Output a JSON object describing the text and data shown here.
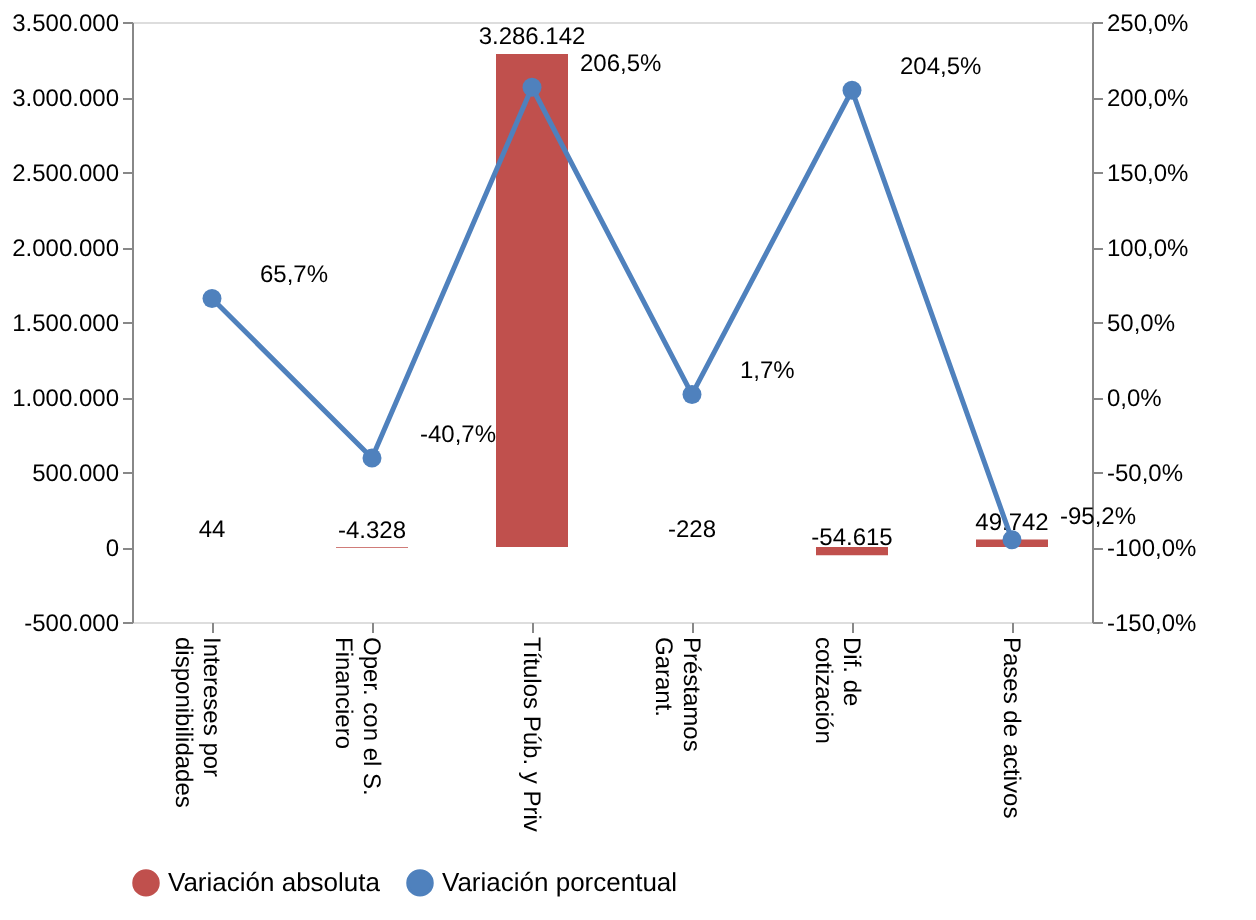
{
  "chart_data": {
    "type": "bar",
    "categories": [
      "Intereses por\ndisponibilidades",
      "Oper. con el S.\nFinanciero",
      "Títulos Púb. y Priv",
      "Préstamos\nGarant.",
      "Dif. de\ncotización",
      "Pases de activos"
    ],
    "series": [
      {
        "name": "Variación absoluta",
        "type": "bar",
        "color": "#c0504d",
        "values": [
          44,
          -4328,
          3286142,
          -228,
          -54615,
          49742
        ],
        "value_labels": [
          "44",
          "-4.328",
          "3.286.142",
          "-228",
          "-54.615",
          "49.742"
        ]
      },
      {
        "name": "Variación porcentual",
        "type": "line",
        "axis": "y2",
        "color": "#4f81bd",
        "values": [
          65.7,
          -40.7,
          206.5,
          1.7,
          204.5,
          -95.2
        ],
        "value_labels": [
          "65,7%",
          "-40,7%",
          "206,5%",
          "1,7%",
          "204,5%",
          "-95,2%"
        ]
      }
    ],
    "ylim": [
      -500000,
      3500000
    ],
    "yticks": [
      {
        "value": -500000,
        "label": "-500.000"
      },
      0,
      {
        "value": 500000,
        "label": "500.000"
      },
      {
        "value": 1000000,
        "label": "1.000.000"
      },
      {
        "value": 1500000,
        "label": "1.500.000"
      },
      {
        "value": 2000000,
        "label": "2.000.000"
      },
      {
        "value": 2500000,
        "label": "2.500.000"
      },
      {
        "value": 3000000,
        "label": "3.000.000"
      },
      {
        "value": 3500000,
        "label": "3.500.000"
      }
    ],
    "y2lim": [
      -150,
      250
    ],
    "y2ticks": [
      {
        "value": -150,
        "label": "-150,0%"
      },
      {
        "value": -100,
        "label": "-100,0%"
      },
      {
        "value": -50,
        "label": "-50,0%"
      },
      {
        "value": 0,
        "label": "0,0%"
      },
      {
        "value": 50,
        "label": "50,0%"
      },
      {
        "value": 100,
        "label": "100,0%"
      },
      {
        "value": 150,
        "label": "150,0%"
      },
      {
        "value": 200,
        "label": "200,0%"
      },
      {
        "value": 250,
        "label": "250,0%"
      }
    ],
    "legend": "bottom",
    "marker": "circle",
    "grid": false
  }
}
